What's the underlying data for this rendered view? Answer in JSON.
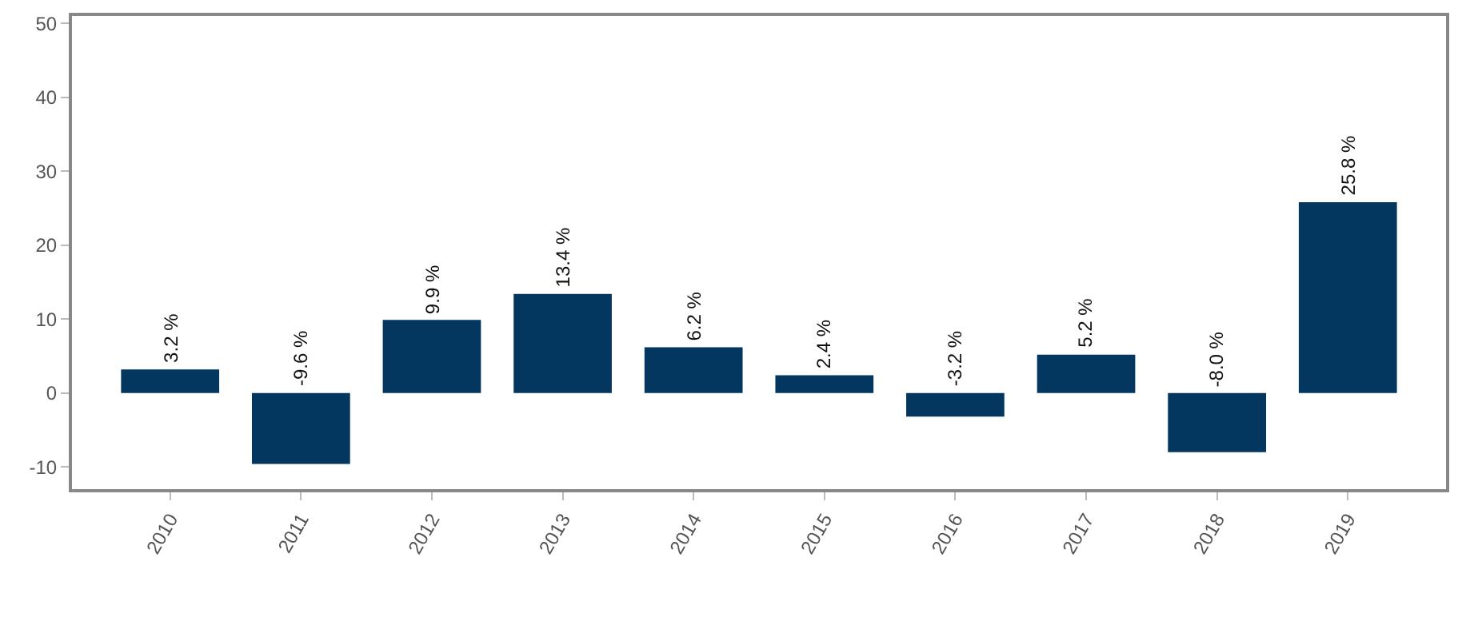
{
  "chart_data": {
    "type": "bar",
    "categories": [
      "2010",
      "2011",
      "2012",
      "2013",
      "2014",
      "2015",
      "2016",
      "2017",
      "2018",
      "2019"
    ],
    "series": [
      {
        "color": "#03375f",
        "values": [
          3.2,
          -9.6,
          9.9,
          13.4,
          6.2,
          2.4,
          -3.2,
          5.2,
          -8.0,
          25.8
        ],
        "value_labels": [
          "3.2 %",
          "-9.6 %",
          "9.9 %",
          "13.4 %",
          "6.2 %",
          "2.4 %",
          "-3.2 %",
          "5.2 %",
          "-8.0 %",
          "25.8 %"
        ]
      }
    ],
    "ylim": [
      -13,
      51
    ],
    "yticks": [
      -10,
      0,
      10,
      20,
      30,
      40,
      50
    ]
  }
}
